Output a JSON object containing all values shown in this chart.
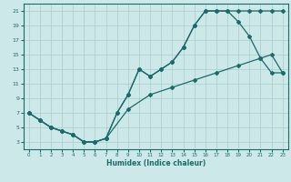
{
  "xlabel": "Humidex (Indice chaleur)",
  "bg_color": "#cce8e8",
  "grid_color": "#aacccc",
  "line_color": "#1a6b6b",
  "xlim": [
    -0.5,
    23.5
  ],
  "ylim": [
    2,
    22
  ],
  "xticks": [
    0,
    1,
    2,
    3,
    4,
    5,
    6,
    7,
    8,
    9,
    10,
    11,
    12,
    13,
    14,
    15,
    16,
    17,
    18,
    19,
    20,
    21,
    22,
    23
  ],
  "yticks": [
    3,
    5,
    7,
    9,
    11,
    13,
    15,
    17,
    19,
    21
  ],
  "line1_x": [
    0,
    1,
    2,
    3,
    4,
    5,
    6,
    7,
    8,
    9,
    10,
    11,
    12,
    13,
    14,
    15,
    16,
    17,
    18,
    19,
    20,
    21,
    22,
    23
  ],
  "line1_y": [
    7,
    6,
    5,
    4.5,
    4,
    3,
    3,
    3.5,
    7,
    9.5,
    13,
    12,
    13,
    14,
    16,
    19,
    21,
    21,
    21,
    21,
    21,
    21,
    21,
    21
  ],
  "line2_x": [
    0,
    1,
    2,
    3,
    4,
    5,
    6,
    7,
    8,
    9,
    10,
    11,
    12,
    13,
    14,
    15,
    16,
    17,
    18,
    19,
    20,
    21,
    22,
    23
  ],
  "line2_y": [
    7,
    6,
    5,
    4.5,
    4,
    3,
    3,
    3.5,
    7,
    9.5,
    13,
    12,
    13,
    14,
    16,
    19,
    21,
    21,
    21,
    19.5,
    17.5,
    14.5,
    12.5,
    12.5
  ],
  "line3_x": [
    0,
    1,
    2,
    3,
    4,
    5,
    6,
    7,
    9,
    11,
    13,
    15,
    17,
    19,
    21,
    22,
    23
  ],
  "line3_y": [
    7,
    6,
    5,
    4.5,
    4,
    3,
    3,
    3.5,
    7.5,
    9.5,
    10.5,
    11.5,
    12.5,
    13.5,
    14.5,
    15,
    12.5
  ]
}
